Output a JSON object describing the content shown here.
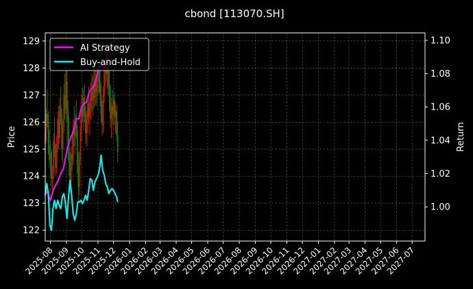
{
  "chart_data": {
    "type": "candlestick+line",
    "title": "cbond [113070.SH]",
    "ylabel_left": "Price",
    "ylabel_right": "Return",
    "ylim_left": [
      121.6,
      129.3
    ],
    "ylim_right": [
      0.9795,
      1.1045
    ],
    "yticks_left": [
      122,
      123,
      124,
      125,
      126,
      127,
      128,
      129
    ],
    "yticks_left_labels": [
      "122",
      "123",
      "124",
      "125",
      "126",
      "127",
      "128",
      "129"
    ],
    "yticks_right": [
      1.0,
      1.02,
      1.04,
      1.06,
      1.08,
      1.1
    ],
    "yticks_right_labels": [
      "1.00",
      "1.02",
      "1.04",
      "1.06",
      "1.08",
      "1.10"
    ],
    "xlim": [
      "2025-07-22",
      "2027-07-26"
    ],
    "xticks": [
      "2025-08-01",
      "2025-09-01",
      "2025-10-01",
      "2025-11-01",
      "2025-12-01",
      "2026-01-01",
      "2026-02-01",
      "2026-03-01",
      "2026-04-01",
      "2026-05-01",
      "2026-06-01",
      "2026-07-01",
      "2026-08-01",
      "2026-09-01",
      "2026-10-01",
      "2026-11-01",
      "2026-12-01",
      "2027-01-01",
      "2027-02-01",
      "2027-03-01",
      "2027-04-01",
      "2027-05-01",
      "2027-06-01",
      "2027-07-01"
    ],
    "xtick_labels": [
      "2025-08",
      "2025-09",
      "2025-10",
      "2025-11",
      "2025-12",
      "2026-01",
      "2026-02",
      "2026-03",
      "2026-04",
      "2026-05",
      "2026-06",
      "2026-07",
      "2026-08",
      "2026-09",
      "2026-10",
      "2026-11",
      "2026-12",
      "2027-01",
      "2027-02",
      "2027-03",
      "2027-04",
      "2027-05",
      "2027-06",
      "2027-07"
    ],
    "grid": true,
    "legend_position": "top-left",
    "candle_colors": {
      "up": "#cc1100",
      "down": "#1a7a1a"
    },
    "candles": [
      [
        "2025-07-22",
        125.2,
        125.9,
        124.9,
        125.6
      ],
      [
        "2025-07-24",
        125.6,
        126.5,
        125.3,
        126.3
      ],
      [
        "2025-07-26",
        126.3,
        127.2,
        125.8,
        126.0
      ],
      [
        "2025-07-28",
        126.0,
        126.4,
        124.8,
        125.1
      ],
      [
        "2025-07-30",
        125.1,
        125.7,
        124.3,
        124.6
      ],
      [
        "2025-08-01",
        124.6,
        125.3,
        124.0,
        124.9
      ],
      [
        "2025-08-03",
        124.9,
        125.0,
        123.6,
        123.9
      ],
      [
        "2025-08-05",
        123.9,
        124.4,
        123.3,
        124.1
      ],
      [
        "2025-08-07",
        124.1,
        125.6,
        123.9,
        125.3
      ],
      [
        "2025-08-09",
        125.3,
        126.2,
        124.7,
        125.0
      ],
      [
        "2025-08-11",
        125.0,
        125.2,
        124.0,
        124.3
      ],
      [
        "2025-08-13",
        124.3,
        125.5,
        124.1,
        125.2
      ],
      [
        "2025-08-15",
        125.2,
        126.4,
        124.9,
        126.1
      ],
      [
        "2025-08-17",
        126.1,
        126.6,
        125.0,
        125.4
      ],
      [
        "2025-08-19",
        125.4,
        126.9,
        125.2,
        126.6
      ],
      [
        "2025-08-21",
        126.6,
        127.3,
        125.9,
        126.2
      ],
      [
        "2025-08-23",
        126.2,
        126.5,
        124.6,
        125.0
      ],
      [
        "2025-08-25",
        125.0,
        126.1,
        124.5,
        125.8
      ],
      [
        "2025-08-27",
        125.8,
        127.4,
        125.6,
        127.0
      ],
      [
        "2025-08-29",
        127.0,
        127.8,
        126.1,
        126.5
      ],
      [
        "2025-08-31",
        126.5,
        127.9,
        126.3,
        127.5
      ],
      [
        "2025-09-02",
        127.5,
        128.0,
        126.0,
        126.4
      ],
      [
        "2025-09-04",
        126.4,
        126.8,
        124.6,
        125.1
      ],
      [
        "2025-09-06",
        125.1,
        126.2,
        124.0,
        124.5
      ],
      [
        "2025-09-08",
        124.5,
        124.9,
        123.4,
        123.8
      ],
      [
        "2025-09-10",
        123.8,
        125.1,
        123.5,
        124.8
      ],
      [
        "2025-09-12",
        124.8,
        125.7,
        124.2,
        124.6
      ],
      [
        "2025-09-14",
        124.6,
        126.1,
        124.4,
        125.8
      ],
      [
        "2025-09-16",
        125.8,
        126.6,
        125.1,
        125.5
      ],
      [
        "2025-09-18",
        125.5,
        126.3,
        124.8,
        126.0
      ],
      [
        "2025-09-20",
        126.0,
        126.8,
        125.4,
        125.7
      ],
      [
        "2025-09-22",
        125.7,
        125.9,
        124.1,
        124.4
      ],
      [
        "2025-09-24",
        124.4,
        124.9,
        123.0,
        123.6
      ],
      [
        "2025-09-26",
        123.6,
        124.9,
        123.3,
        124.6
      ],
      [
        "2025-09-28",
        124.6,
        126.1,
        124.4,
        125.8
      ],
      [
        "2025-09-30",
        125.8,
        127.0,
        125.3,
        126.6
      ],
      [
        "2025-10-02",
        126.6,
        127.3,
        126.0,
        126.2
      ],
      [
        "2025-10-04",
        126.2,
        127.2,
        125.7,
        126.9
      ],
      [
        "2025-10-06",
        126.9,
        127.4,
        126.0,
        126.3
      ],
      [
        "2025-10-08",
        126.3,
        126.6,
        125.2,
        125.6
      ],
      [
        "2025-10-10",
        125.6,
        126.4,
        125.1,
        126.1
      ],
      [
        "2025-10-12",
        126.1,
        127.0,
        125.6,
        126.7
      ],
      [
        "2025-10-14",
        126.7,
        127.3,
        125.9,
        126.2
      ],
      [
        "2025-10-16",
        126.2,
        126.9,
        125.5,
        126.5
      ],
      [
        "2025-10-18",
        126.5,
        127.5,
        126.1,
        127.1
      ],
      [
        "2025-10-20",
        127.1,
        127.8,
        126.4,
        126.8
      ],
      [
        "2025-10-22",
        126.8,
        127.7,
        126.2,
        127.4
      ],
      [
        "2025-10-24",
        127.4,
        128.0,
        126.5,
        126.9
      ],
      [
        "2025-10-26",
        126.9,
        127.9,
        126.6,
        127.6
      ],
      [
        "2025-10-28",
        127.6,
        128.2,
        126.7,
        127.1
      ],
      [
        "2025-10-30",
        127.1,
        128.0,
        126.6,
        127.7
      ],
      [
        "2025-11-01",
        127.7,
        128.5,
        127.0,
        128.2
      ],
      [
        "2025-11-03",
        128.2,
        128.7,
        127.1,
        127.5
      ],
      [
        "2025-11-05",
        127.5,
        128.0,
        126.6,
        127.0
      ],
      [
        "2025-11-07",
        127.0,
        127.4,
        126.0,
        126.3
      ],
      [
        "2025-11-09",
        126.3,
        126.8,
        125.5,
        125.9
      ],
      [
        "2025-11-11",
        125.9,
        127.3,
        125.6,
        127.0
      ],
      [
        "2025-11-13",
        127.0,
        128.2,
        126.7,
        127.9
      ],
      [
        "2025-11-15",
        127.9,
        128.9,
        127.3,
        128.5
      ],
      [
        "2025-11-17",
        128.5,
        129.0,
        127.5,
        127.8
      ],
      [
        "2025-11-19",
        127.8,
        128.7,
        127.2,
        128.3
      ],
      [
        "2025-11-21",
        128.3,
        128.8,
        127.0,
        127.3
      ],
      [
        "2025-11-23",
        127.3,
        127.9,
        126.4,
        126.7
      ],
      [
        "2025-11-25",
        126.7,
        127.4,
        125.8,
        126.1
      ],
      [
        "2025-11-27",
        126.1,
        126.9,
        125.4,
        126.6
      ],
      [
        "2025-11-29",
        126.6,
        127.2,
        125.9,
        126.3
      ],
      [
        "2025-12-01",
        126.3,
        127.0,
        125.7,
        126.8
      ],
      [
        "2025-12-03",
        126.8,
        127.1,
        125.9,
        126.2
      ],
      [
        "2025-12-05",
        126.2,
        126.7,
        125.6,
        126.4
      ],
      [
        "2025-12-07",
        126.4,
        126.6,
        125.3,
        125.5
      ],
      [
        "2025-12-09",
        125.5,
        126.0,
        124.5,
        124.9
      ]
    ],
    "series": [
      {
        "name": "AI Strategy",
        "color": "#ee11ee",
        "axis": "right",
        "x": [
          "2025-07-22",
          "2025-07-27",
          "2025-08-01",
          "2025-08-06",
          "2025-08-11",
          "2025-08-16",
          "2025-08-21",
          "2025-08-26",
          "2025-08-31",
          "2025-09-05",
          "2025-09-10",
          "2025-09-15",
          "2025-09-20",
          "2025-09-25",
          "2025-09-30",
          "2025-10-05",
          "2025-10-10",
          "2025-10-15",
          "2025-10-20",
          "2025-10-25",
          "2025-10-30",
          "2025-11-04",
          "2025-11-09",
          "2025-11-14",
          "2025-11-19",
          "2025-11-24",
          "2025-11-29",
          "2025-12-04",
          "2025-12-09"
        ],
        "values": [
          1.01,
          1.008,
          1.004,
          1.01,
          1.013,
          1.016,
          1.02,
          1.023,
          1.031,
          1.038,
          1.042,
          1.046,
          1.053,
          1.053,
          1.06,
          1.062,
          1.063,
          1.069,
          1.071,
          1.073,
          1.079,
          1.084,
          1.085,
          1.083,
          1.091,
          1.097,
          1.099,
          1.1,
          1.101
        ]
      },
      {
        "name": "Buy-and-Hold",
        "color": "#19e6e6",
        "axis": "right",
        "x": [
          "2025-07-22",
          "2025-07-25",
          "2025-07-28",
          "2025-07-31",
          "2025-08-03",
          "2025-08-06",
          "2025-08-09",
          "2025-08-12",
          "2025-08-15",
          "2025-08-18",
          "2025-08-21",
          "2025-08-24",
          "2025-08-27",
          "2025-08-30",
          "2025-09-02",
          "2025-09-05",
          "2025-09-08",
          "2025-09-11",
          "2025-09-14",
          "2025-09-17",
          "2025-09-20",
          "2025-09-23",
          "2025-09-26",
          "2025-09-29",
          "2025-10-02",
          "2025-10-05",
          "2025-10-08",
          "2025-10-11",
          "2025-10-14",
          "2025-10-17",
          "2025-10-20",
          "2025-10-23",
          "2025-10-26",
          "2025-10-29",
          "2025-11-01",
          "2025-11-04",
          "2025-11-07",
          "2025-11-10",
          "2025-11-13",
          "2025-11-16",
          "2025-11-19",
          "2025-11-22",
          "2025-11-25",
          "2025-11-28",
          "2025-12-01",
          "2025-12-04",
          "2025-12-07",
          "2025-12-09"
        ],
        "values": [
          1.007,
          1.014,
          1.008,
          0.989,
          0.986,
          0.999,
          1.004,
          0.999,
          1.004,
          1.001,
          0.999,
          1.006,
          1.008,
          1.002,
          0.993,
          1.006,
          1.016,
          1.007,
          0.996,
          0.992,
          0.996,
          1.003,
          1.003,
          1.004,
          1.002,
          1.004,
          1.007,
          1.004,
          1.01,
          1.017,
          1.016,
          1.01,
          1.015,
          1.017,
          1.019,
          1.023,
          1.031,
          1.022,
          1.019,
          1.014,
          1.012,
          1.008,
          1.01,
          1.011,
          1.01,
          1.008,
          1.006,
          1.003
        ]
      }
    ]
  }
}
